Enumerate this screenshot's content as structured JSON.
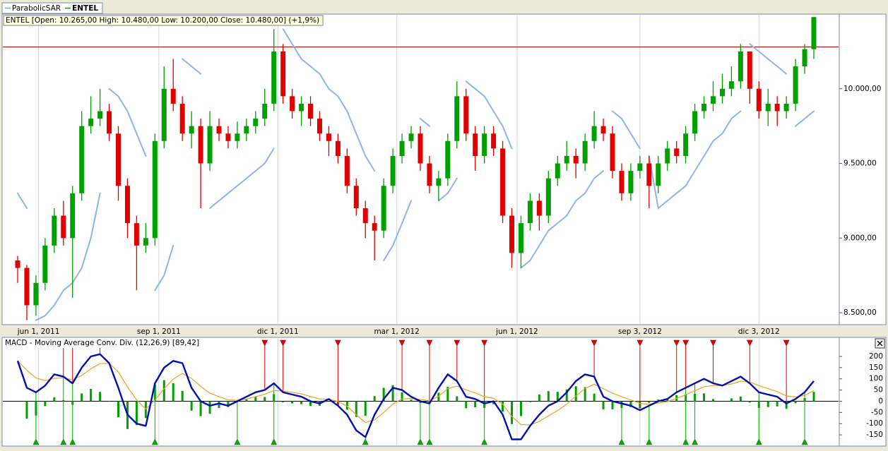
{
  "chart_data": [
    {
      "type": "candlestick",
      "info": "ENTEL [Open: 10.265,00  High: 10.480,00  Low: 10.200,00  Close: 10.480,00] (+1,9%)",
      "legend": [
        {
          "name": "ParabolicSAR",
          "color": "#6f9ee8"
        },
        {
          "name": "ENTEL",
          "color": "#009a00"
        }
      ],
      "categories": [
        "2011-05-16",
        "2011-05-23",
        "2011-05-30",
        "2011-06-06",
        "2011-06-13",
        "2011-06-20",
        "2011-06-27",
        "2011-07-04",
        "2011-07-11",
        "2011-07-18",
        "2011-07-25",
        "2011-08-01",
        "2011-08-08",
        "2011-08-15",
        "2011-08-22",
        "2011-08-29",
        "2011-09-05",
        "2011-09-12",
        "2011-09-19",
        "2011-09-26",
        "2011-10-03",
        "2011-10-10",
        "2011-10-17",
        "2011-10-24",
        "2011-10-31",
        "2011-11-07",
        "2011-11-14",
        "2011-11-21",
        "2011-11-28",
        "2011-12-05",
        "2011-12-12",
        "2011-12-19",
        "2011-12-26",
        "2012-01-02",
        "2012-01-09",
        "2012-01-16",
        "2012-01-23",
        "2012-01-30",
        "2012-02-06",
        "2012-02-13",
        "2012-02-20",
        "2012-02-27",
        "2012-03-05",
        "2012-03-12",
        "2012-03-19",
        "2012-03-26",
        "2012-04-02",
        "2012-04-09",
        "2012-04-16",
        "2012-04-23",
        "2012-04-30",
        "2012-05-07",
        "2012-05-14",
        "2012-05-21",
        "2012-05-28",
        "2012-06-04",
        "2012-06-11",
        "2012-06-18",
        "2012-06-25",
        "2012-07-02",
        "2012-07-09",
        "2012-07-16",
        "2012-07-23",
        "2012-07-30",
        "2012-08-06",
        "2012-08-13",
        "2012-08-20",
        "2012-08-27",
        "2012-09-03",
        "2012-09-10",
        "2012-09-17",
        "2012-09-24",
        "2012-10-01",
        "2012-10-08",
        "2012-10-15",
        "2012-10-22",
        "2012-10-29",
        "2012-11-05",
        "2012-11-12",
        "2012-11-19",
        "2012-11-26",
        "2012-12-03",
        "2012-12-10",
        "2012-12-17",
        "2012-12-24",
        "2012-12-31",
        "2013-01-07",
        "2013-01-14"
      ],
      "open": [
        8850,
        8800,
        8550,
        8700,
        8950,
        9150,
        9000,
        9300,
        9750,
        9800,
        9850,
        9700,
        9350,
        9100,
        8950,
        9000,
        9650,
        10000,
        9900,
        9700,
        9750,
        9500,
        9750,
        9700,
        9650,
        9700,
        9750,
        9800,
        9900,
        10250,
        9950,
        9850,
        9900,
        9800,
        9700,
        9650,
        9550,
        9350,
        9200,
        9100,
        9050,
        9350,
        9550,
        9650,
        9700,
        9500,
        9350,
        9400,
        9650,
        9950,
        9700,
        9550,
        9700,
        9600,
        9150,
        8900,
        9100,
        9250,
        9150,
        9400,
        9500,
        9550,
        9500,
        9650,
        9750,
        9700,
        9450,
        9300,
        9450,
        9500,
        9350,
        9500,
        9600,
        9550,
        9700,
        9850,
        9900,
        9950,
        10000,
        10050,
        10250,
        10000,
        9850,
        9900,
        9850,
        9900,
        10150,
        10265
      ],
      "high": [
        8880,
        8820,
        8750,
        9000,
        9200,
        9250,
        9350,
        9850,
        9950,
        10000,
        9900,
        9750,
        9400,
        9150,
        9100,
        9700,
        10150,
        10200,
        9950,
        9850,
        9800,
        9850,
        9800,
        9750,
        9780,
        9800,
        9850,
        10000,
        10400,
        10300,
        10000,
        9950,
        9950,
        9850,
        9750,
        9700,
        9600,
        9400,
        9250,
        9150,
        9400,
        9600,
        9700,
        9750,
        9750,
        9550,
        9450,
        9700,
        10050,
        10000,
        9750,
        9750,
        9750,
        9650,
        9200,
        9150,
        9300,
        9300,
        9450,
        9550,
        9650,
        9600,
        9700,
        9850,
        9800,
        9750,
        9500,
        9500,
        9550,
        9550,
        9550,
        9650,
        9650,
        9750,
        9900,
        9950,
        10050,
        10100,
        10150,
        10300,
        10250,
        10050,
        10000,
        9950,
        9950,
        10200,
        10300,
        10480
      ],
      "low": [
        8700,
        8450,
        8480,
        8650,
        8900,
        8950,
        8600,
        9250,
        9700,
        9750,
        9650,
        9250,
        9000,
        8650,
        8900,
        8950,
        9600,
        9850,
        9650,
        9600,
        9200,
        9450,
        9650,
        9600,
        9600,
        9650,
        9700,
        9750,
        9850,
        9900,
        9800,
        9750,
        9750,
        9650,
        9550,
        9500,
        9300,
        9150,
        9000,
        8850,
        9000,
        9300,
        9500,
        9600,
        9450,
        9300,
        9250,
        9350,
        9600,
        9650,
        9450,
        9500,
        9550,
        9100,
        8800,
        8800,
        9050,
        9050,
        9100,
        9350,
        9450,
        9400,
        9450,
        9600,
        9650,
        9400,
        9250,
        9250,
        9400,
        9200,
        9300,
        9450,
        9500,
        9500,
        9650,
        9800,
        9850,
        9900,
        9950,
        10000,
        9900,
        9800,
        9750,
        9750,
        9800,
        9850,
        10100,
        10200
      ],
      "close": [
        8800,
        8550,
        8700,
        8950,
        9150,
        9000,
        9300,
        9750,
        9800,
        9850,
        9700,
        9350,
        9100,
        8950,
        9000,
        9650,
        10000,
        9900,
        9700,
        9750,
        9500,
        9750,
        9700,
        9650,
        9700,
        9750,
        9800,
        9900,
        10250,
        9950,
        9850,
        9900,
        9800,
        9700,
        9650,
        9550,
        9350,
        9200,
        9100,
        9050,
        9350,
        9550,
        9650,
        9700,
        9500,
        9350,
        9400,
        9650,
        9950,
        9700,
        9550,
        9700,
        9600,
        9150,
        8900,
        9100,
        9250,
        9150,
        9400,
        9500,
        9550,
        9500,
        9650,
        9750,
        9700,
        9450,
        9300,
        9450,
        9500,
        9350,
        9500,
        9600,
        9550,
        9700,
        9850,
        9900,
        9950,
        10000,
        10050,
        10250,
        10000,
        9850,
        9900,
        9850,
        9900,
        10150,
        10265,
        10480
      ],
      "sar": [
        9300,
        9200,
        8450,
        8480,
        8550,
        8650,
        8700,
        8800,
        9000,
        9300,
        10000,
        9950,
        9850,
        9700,
        9550,
        8650,
        8750,
        8950,
        10200,
        10150,
        10100,
        9200,
        9250,
        9300,
        9350,
        9400,
        9450,
        9500,
        9600,
        10400,
        10300,
        10200,
        10150,
        10100,
        10000,
        9950,
        9850,
        9700,
        9550,
        9450,
        8850,
        8950,
        9100,
        9250,
        9800,
        9750,
        9250,
        9300,
        9400,
        10050,
        10000,
        9950,
        9850,
        9750,
        9600,
        8800,
        8850,
        8950,
        9050,
        9100,
        9150,
        9250,
        9300,
        9400,
        9450,
        9850,
        9800,
        9700,
        9600,
        9550,
        9200,
        9250,
        9300,
        9350,
        9450,
        9550,
        9650,
        9700,
        9800,
        9850,
        10300,
        10250,
        10200,
        10150,
        10100,
        9750,
        9800,
        9850
      ],
      "up_color": "#00a000",
      "down_color": "#e00000",
      "sar_color": "#8cb4ee",
      "hline": 10280,
      "hline_color": "#c00000",
      "ylim": [
        8420,
        10500
      ],
      "yticks": [
        {
          "value": 8500,
          "label": "8.500,00"
        },
        {
          "value": 9000,
          "label": "9.000,00"
        },
        {
          "value": 9500,
          "label": "9.500,00"
        },
        {
          "value": 10000,
          "label": "10.000,00"
        }
      ],
      "xlim": [
        "2011-05-16",
        "2013-01-14"
      ],
      "xticks": [
        {
          "value": "2011-06-01",
          "label": "jun 1, 2011"
        },
        {
          "value": "2011-09-01",
          "label": "sep 1, 2011"
        },
        {
          "value": "2011-12-01",
          "label": "dic 1, 2011"
        },
        {
          "value": "2012-03-01",
          "label": "mar 1, 2012"
        },
        {
          "value": "2012-06-01",
          "label": "jun 1, 2012"
        },
        {
          "value": "2012-09-03",
          "label": "sep 3, 2012"
        },
        {
          "value": "2012-12-03",
          "label": "dic 3, 2012"
        }
      ],
      "grid": true
    },
    {
      "type": "macd",
      "title": "MACD - Moving Average Conv. Div. (12,26,9) [89,42]",
      "macd": [
        180,
        60,
        40,
        70,
        120,
        110,
        80,
        150,
        200,
        210,
        170,
        60,
        -60,
        -100,
        -110,
        80,
        150,
        180,
        170,
        60,
        0,
        -20,
        -10,
        -20,
        0,
        20,
        40,
        50,
        80,
        40,
        30,
        20,
        0,
        -10,
        10,
        -20,
        -60,
        -130,
        -160,
        -60,
        10,
        60,
        50,
        20,
        0,
        -10,
        60,
        120,
        90,
        20,
        10,
        -10,
        0,
        -60,
        -170,
        -170,
        -110,
        -60,
        -20,
        0,
        40,
        90,
        120,
        110,
        20,
        0,
        -10,
        -20,
        -40,
        -20,
        0,
        10,
        40,
        60,
        80,
        100,
        80,
        70,
        90,
        110,
        80,
        40,
        30,
        20,
        -10,
        10,
        40,
        90
      ],
      "signal": [
        180,
        138,
        104,
        92,
        102,
        105,
        96,
        115,
        145,
        168,
        169,
        131,
        64,
        6,
        -35,
        5,
        56,
        99,
        124,
        102,
        66,
        36,
        20,
        6,
        4,
        10,
        20,
        31,
        48,
        45,
        40,
        33,
        21,
        10,
        10,
        -1,
        -22,
        -60,
        -95,
        -83,
        -50,
        -12,
        10,
        13,
        8,
        2,
        22,
        56,
        68,
        51,
        37,
        20,
        13,
        -13,
        -68,
        -104,
        -106,
        -90,
        -65,
        -42,
        -13,
        23,
        57,
        76,
        56,
        36,
        20,
        6,
        -10,
        -13,
        -8,
        -2,
        13,
        29,
        47,
        65,
        70,
        70,
        77,
        89,
        86,
        70,
        56,
        43,
        24,
        19,
        26,
        48
      ],
      "histogram": [
        0,
        -78,
        -64,
        -22,
        18,
        5,
        -16,
        35,
        55,
        42,
        1,
        -71,
        -124,
        -106,
        -75,
        75,
        94,
        81,
        46,
        -42,
        -66,
        -56,
        -30,
        -26,
        -4,
        10,
        20,
        19,
        32,
        -5,
        -10,
        -13,
        -21,
        -20,
        0,
        -19,
        -38,
        -70,
        -65,
        23,
        60,
        72,
        40,
        7,
        -8,
        -12,
        38,
        64,
        22,
        -31,
        -27,
        -30,
        -13,
        -47,
        -102,
        -66,
        -4,
        30,
        45,
        42,
        53,
        67,
        63,
        34,
        -36,
        -36,
        -30,
        -26,
        -30,
        -7,
        8,
        12,
        27,
        31,
        33,
        35,
        10,
        0,
        13,
        21,
        -6,
        -30,
        -26,
        -23,
        -34,
        -9,
        14,
        42
      ],
      "sell_signals": [
        "2011-06-20",
        "2011-06-27",
        "2011-07-18",
        "2011-11-21",
        "2011-12-05",
        "2012-01-16",
        "2012-03-05",
        "2012-03-26",
        "2012-04-16",
        "2012-05-07",
        "2012-07-30",
        "2012-09-03",
        "2012-10-01",
        "2012-10-08",
        "2012-10-29",
        "2012-11-26",
        "2012-12-24"
      ],
      "buy_signals": [
        "2011-05-30",
        "2011-06-20",
        "2011-06-27",
        "2011-08-29",
        "2011-10-31",
        "2011-11-28",
        "2012-02-06",
        "2012-03-19",
        "2012-03-26",
        "2012-05-07",
        "2012-08-20",
        "2012-09-10",
        "2012-10-08",
        "2012-10-15",
        "2012-12-03",
        "2013-01-07"
      ],
      "macd_color": "#0010b0",
      "signal_color": "#f0a020",
      "histogram_color": "#00a000",
      "sell_color": "#e00000",
      "buy_color": "#00b000",
      "ylim": [
        -200,
        285
      ],
      "yticks": [
        -150,
        -100,
        -50,
        0,
        50,
        100,
        150,
        200
      ]
    }
  ]
}
